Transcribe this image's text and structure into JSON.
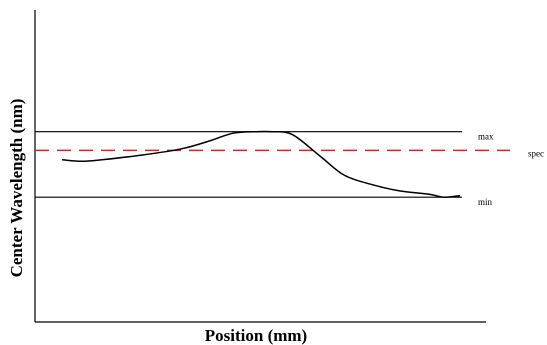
{
  "chart_data": {
    "type": "line",
    "title": "",
    "xlabel": "Position (mm)",
    "ylabel": "Center Wavelength (nm)",
    "xlim": [
      0,
      100
    ],
    "ylim": [
      0,
      100
    ],
    "grid": false,
    "reference_lines": [
      {
        "label": "max",
        "value": 61,
        "style": "solid",
        "color": "#000000"
      },
      {
        "label": "spec",
        "value": 55,
        "style": "dashed",
        "color": "#e02020"
      },
      {
        "label": "min",
        "value": 40,
        "style": "solid",
        "color": "#000000"
      }
    ],
    "series": [
      {
        "color": "#000000",
        "x": [
          0,
          5,
          10,
          20,
          30,
          37,
          43,
          49,
          53,
          58,
          65,
          71,
          78,
          85,
          92,
          96,
          100
        ],
        "y": [
          52,
          51.5,
          52,
          53.5,
          55.5,
          58,
          60.5,
          61,
          61,
          60,
          53,
          47,
          44,
          42,
          41,
          40,
          40.5
        ]
      }
    ]
  }
}
